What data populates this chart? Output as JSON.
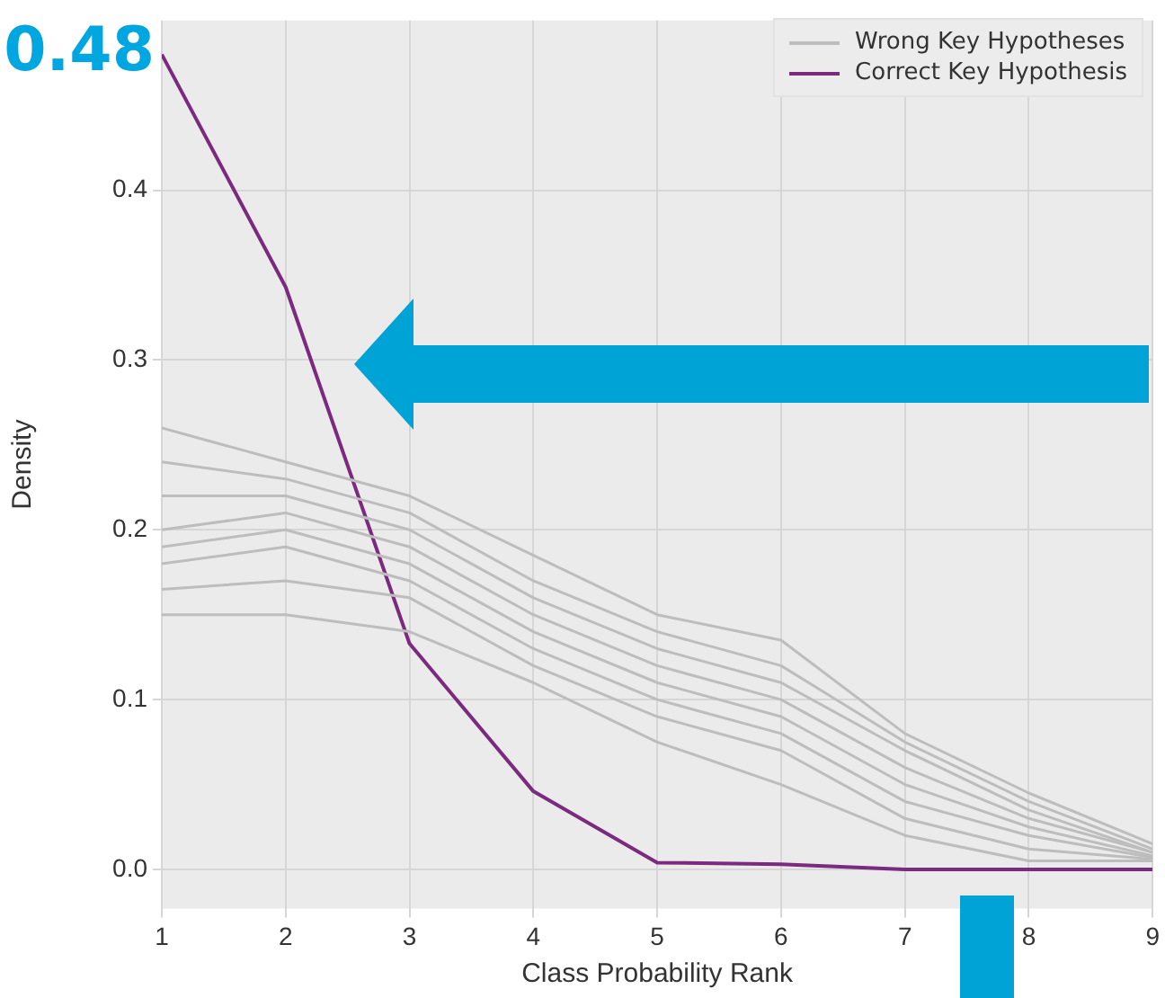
{
  "chart_data": {
    "type": "line",
    "xlabel": "Class Probability Rank",
    "ylabel": "Density",
    "x": [
      1,
      2,
      3,
      4,
      5,
      6,
      7,
      8,
      9
    ],
    "xlim": [
      1,
      9
    ],
    "xticks": [
      1,
      2,
      3,
      4,
      5,
      6,
      7,
      8,
      9
    ],
    "ylim": [
      -0.023,
      0.5
    ],
    "yticks": [
      {
        "value": 0,
        "label": "0.0"
      },
      0.1,
      0.2,
      0.3,
      0.4
    ],
    "grid": true,
    "legend": "top right",
    "marker": "none",
    "line_style": "solid",
    "annotations": [
      {
        "text": "0.48",
        "x": 1,
        "y": 0.48
      }
    ],
    "series": [
      {
        "name": "Wrong Key Hypotheses",
        "color": "#bdbdbd",
        "values": [
          0.26,
          0.24,
          0.22,
          0.185,
          0.15,
          0.135,
          0.08,
          0.045,
          0.015
        ]
      },
      {
        "color": "#bdbdbd",
        "values": [
          0.24,
          0.23,
          0.21,
          0.17,
          0.14,
          0.12,
          0.075,
          0.04,
          0.012
        ]
      },
      {
        "color": "#bdbdbd",
        "values": [
          0.22,
          0.22,
          0.2,
          0.16,
          0.13,
          0.11,
          0.07,
          0.035,
          0.01
        ]
      },
      {
        "color": "#bdbdbd",
        "values": [
          0.2,
          0.21,
          0.19,
          0.15,
          0.12,
          0.1,
          0.06,
          0.03,
          0.01
        ]
      },
      {
        "color": "#bdbdbd",
        "values": [
          0.19,
          0.2,
          0.18,
          0.14,
          0.11,
          0.09,
          0.05,
          0.025,
          0.008
        ]
      },
      {
        "color": "#bdbdbd",
        "values": [
          0.18,
          0.19,
          0.17,
          0.13,
          0.1,
          0.08,
          0.04,
          0.02,
          0.007
        ]
      },
      {
        "color": "#bdbdbd",
        "values": [
          0.165,
          0.17,
          0.16,
          0.12,
          0.09,
          0.07,
          0.03,
          0.012,
          0.006
        ]
      },
      {
        "color": "#bdbdbd",
        "values": [
          0.15,
          0.15,
          0.14,
          0.11,
          0.075,
          0.05,
          0.02,
          0.005,
          0.005
        ]
      },
      {
        "name": "Correct Key Hypothesis",
        "color": "#7b2a7f",
        "values": [
          0.48,
          0.343,
          0.133,
          0.046,
          0.004,
          0.003,
          0.0,
          0.0,
          0.0
        ]
      }
    ]
  }
}
